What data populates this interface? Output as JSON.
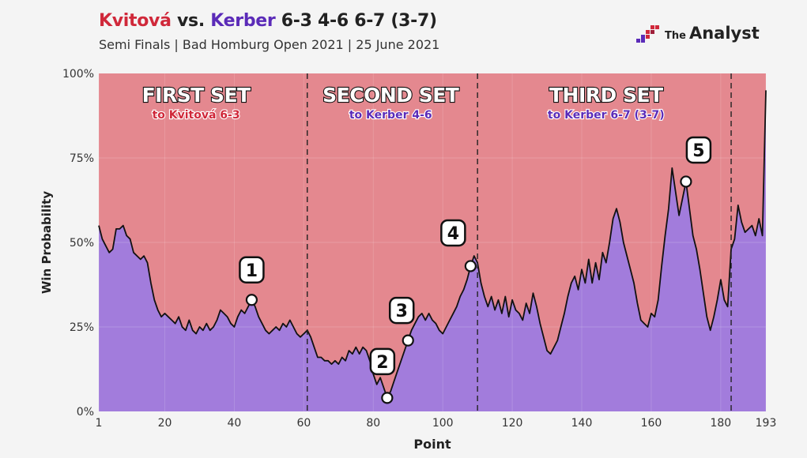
{
  "header": {
    "player1": "Kvitová",
    "vs": "vs.",
    "player2": "Kerber",
    "score": "6-3 4-6 6-7 (3-7)",
    "subtitle": "Semi Finals | Bad Homburg Open 2021 | 25 June 2021"
  },
  "brand": {
    "the": "The",
    "name": "Analyst"
  },
  "colors": {
    "kvitova": "#e4888f",
    "kerber": "#a27cdc",
    "line": "#111111",
    "title_red": "#d0283a",
    "title_purple": "#5b2bb8"
  },
  "chart_data": {
    "type": "area",
    "xlabel": "Point",
    "ylabel": "Win Probability",
    "xlim": [
      1,
      193
    ],
    "ylim": [
      0,
      100
    ],
    "x_ticks": [
      1,
      20,
      40,
      60,
      80,
      100,
      120,
      140,
      160,
      180,
      193
    ],
    "y_ticks": [
      {
        "v": 0,
        "label": "0%"
      },
      {
        "v": 25,
        "label": "25%"
      },
      {
        "v": 50,
        "label": "50%"
      },
      {
        "v": 75,
        "label": "75%"
      },
      {
        "v": 100,
        "label": "100%"
      }
    ],
    "set_boundaries": [
      61,
      110,
      183
    ],
    "sets": [
      {
        "name": "FIRST SET",
        "result": "to Kvitová 6-3",
        "color": "#d0283a",
        "x_center": 29
      },
      {
        "name": "SECOND SET",
        "result": "to Kerber 4-6",
        "color": "#5b2bb8",
        "x_center": 85
      },
      {
        "name": "THIRD SET",
        "result": "to Kerber 6-7 (3-7)",
        "color": "#5b2bb8",
        "x_center": 147
      }
    ],
    "series": [
      {
        "name": "Kerber win probability",
        "points": [
          [
            1,
            55
          ],
          [
            2,
            51
          ],
          [
            3,
            49
          ],
          [
            4,
            47
          ],
          [
            5,
            48
          ],
          [
            6,
            54
          ],
          [
            7,
            54
          ],
          [
            8,
            55
          ],
          [
            9,
            52
          ],
          [
            10,
            51
          ],
          [
            11,
            47
          ],
          [
            12,
            46
          ],
          [
            13,
            45
          ],
          [
            14,
            46
          ],
          [
            15,
            44
          ],
          [
            16,
            38
          ],
          [
            17,
            33
          ],
          [
            18,
            30
          ],
          [
            19,
            28
          ],
          [
            20,
            29
          ],
          [
            21,
            28
          ],
          [
            22,
            27
          ],
          [
            23,
            26
          ],
          [
            24,
            28
          ],
          [
            25,
            25
          ],
          [
            26,
            24
          ],
          [
            27,
            27
          ],
          [
            28,
            24
          ],
          [
            29,
            23
          ],
          [
            30,
            25
          ],
          [
            31,
            24
          ],
          [
            32,
            26
          ],
          [
            33,
            24
          ],
          [
            34,
            25
          ],
          [
            35,
            27
          ],
          [
            36,
            30
          ],
          [
            37,
            29
          ],
          [
            38,
            28
          ],
          [
            39,
            26
          ],
          [
            40,
            25
          ],
          [
            41,
            28
          ],
          [
            42,
            30
          ],
          [
            43,
            29
          ],
          [
            44,
            31
          ],
          [
            45,
            33
          ],
          [
            46,
            31
          ],
          [
            47,
            28
          ],
          [
            48,
            26
          ],
          [
            49,
            24
          ],
          [
            50,
            23
          ],
          [
            51,
            24
          ],
          [
            52,
            25
          ],
          [
            53,
            24
          ],
          [
            54,
            26
          ],
          [
            55,
            25
          ],
          [
            56,
            27
          ],
          [
            57,
            25
          ],
          [
            58,
            23
          ],
          [
            59,
            22
          ],
          [
            60,
            23
          ],
          [
            61,
            24
          ],
          [
            62,
            22
          ],
          [
            63,
            19
          ],
          [
            64,
            16
          ],
          [
            65,
            16
          ],
          [
            66,
            15
          ],
          [
            67,
            15
          ],
          [
            68,
            14
          ],
          [
            69,
            15
          ],
          [
            70,
            14
          ],
          [
            71,
            16
          ],
          [
            72,
            15
          ],
          [
            73,
            18
          ],
          [
            74,
            17
          ],
          [
            75,
            19
          ],
          [
            76,
            17
          ],
          [
            77,
            19
          ],
          [
            78,
            18
          ],
          [
            79,
            15
          ],
          [
            80,
            11
          ],
          [
            81,
            8
          ],
          [
            82,
            10
          ],
          [
            83,
            7
          ],
          [
            84,
            4
          ],
          [
            85,
            6
          ],
          [
            86,
            9
          ],
          [
            87,
            12
          ],
          [
            88,
            15
          ],
          [
            89,
            18
          ],
          [
            90,
            21
          ],
          [
            91,
            24
          ],
          [
            92,
            26
          ],
          [
            93,
            28
          ],
          [
            94,
            29
          ],
          [
            95,
            27
          ],
          [
            96,
            29
          ],
          [
            97,
            27
          ],
          [
            98,
            26
          ],
          [
            99,
            24
          ],
          [
            100,
            23
          ],
          [
            101,
            25
          ],
          [
            102,
            27
          ],
          [
            103,
            29
          ],
          [
            104,
            31
          ],
          [
            105,
            34
          ],
          [
            106,
            36
          ],
          [
            107,
            39
          ],
          [
            108,
            43
          ],
          [
            109,
            46
          ],
          [
            110,
            44
          ],
          [
            111,
            38
          ],
          [
            112,
            34
          ],
          [
            113,
            31
          ],
          [
            114,
            34
          ],
          [
            115,
            30
          ],
          [
            116,
            33
          ],
          [
            117,
            29
          ],
          [
            118,
            34
          ],
          [
            119,
            28
          ],
          [
            120,
            33
          ],
          [
            121,
            30
          ],
          [
            122,
            29
          ],
          [
            123,
            27
          ],
          [
            124,
            32
          ],
          [
            125,
            29
          ],
          [
            126,
            35
          ],
          [
            127,
            31
          ],
          [
            128,
            26
          ],
          [
            129,
            22
          ],
          [
            130,
            18
          ],
          [
            131,
            17
          ],
          [
            132,
            19
          ],
          [
            133,
            21
          ],
          [
            134,
            25
          ],
          [
            135,
            29
          ],
          [
            136,
            34
          ],
          [
            137,
            38
          ],
          [
            138,
            40
          ],
          [
            139,
            36
          ],
          [
            140,
            42
          ],
          [
            141,
            38
          ],
          [
            142,
            45
          ],
          [
            143,
            38
          ],
          [
            144,
            44
          ],
          [
            145,
            39
          ],
          [
            146,
            47
          ],
          [
            147,
            44
          ],
          [
            148,
            50
          ],
          [
            149,
            57
          ],
          [
            150,
            60
          ],
          [
            151,
            56
          ],
          [
            152,
            50
          ],
          [
            153,
            46
          ],
          [
            154,
            42
          ],
          [
            155,
            38
          ],
          [
            156,
            32
          ],
          [
            157,
            27
          ],
          [
            158,
            26
          ],
          [
            159,
            25
          ],
          [
            160,
            29
          ],
          [
            161,
            28
          ],
          [
            162,
            33
          ],
          [
            163,
            43
          ],
          [
            164,
            52
          ],
          [
            165,
            60
          ],
          [
            166,
            72
          ],
          [
            167,
            65
          ],
          [
            168,
            58
          ],
          [
            169,
            63
          ],
          [
            170,
            68
          ],
          [
            171,
            60
          ],
          [
            172,
            52
          ],
          [
            173,
            48
          ],
          [
            174,
            42
          ],
          [
            175,
            35
          ],
          [
            176,
            28
          ],
          [
            177,
            24
          ],
          [
            178,
            28
          ],
          [
            179,
            33
          ],
          [
            180,
            39
          ],
          [
            181,
            33
          ],
          [
            182,
            31
          ],
          [
            183,
            48
          ],
          [
            184,
            51
          ],
          [
            185,
            61
          ],
          [
            186,
            56
          ],
          [
            187,
            53
          ],
          [
            188,
            54
          ],
          [
            189,
            55
          ],
          [
            190,
            52
          ],
          [
            191,
            57
          ],
          [
            192,
            52
          ],
          [
            193,
            95
          ]
        ]
      }
    ],
    "annotations": [
      {
        "label": "1",
        "x": 45,
        "y": 33
      },
      {
        "label": "2",
        "x": 84,
        "y": 4
      },
      {
        "label": "3",
        "x": 90,
        "y": 21
      },
      {
        "label": "4",
        "x": 108,
        "y": 43
      },
      {
        "label": "5",
        "x": 170,
        "y": 68
      }
    ]
  }
}
